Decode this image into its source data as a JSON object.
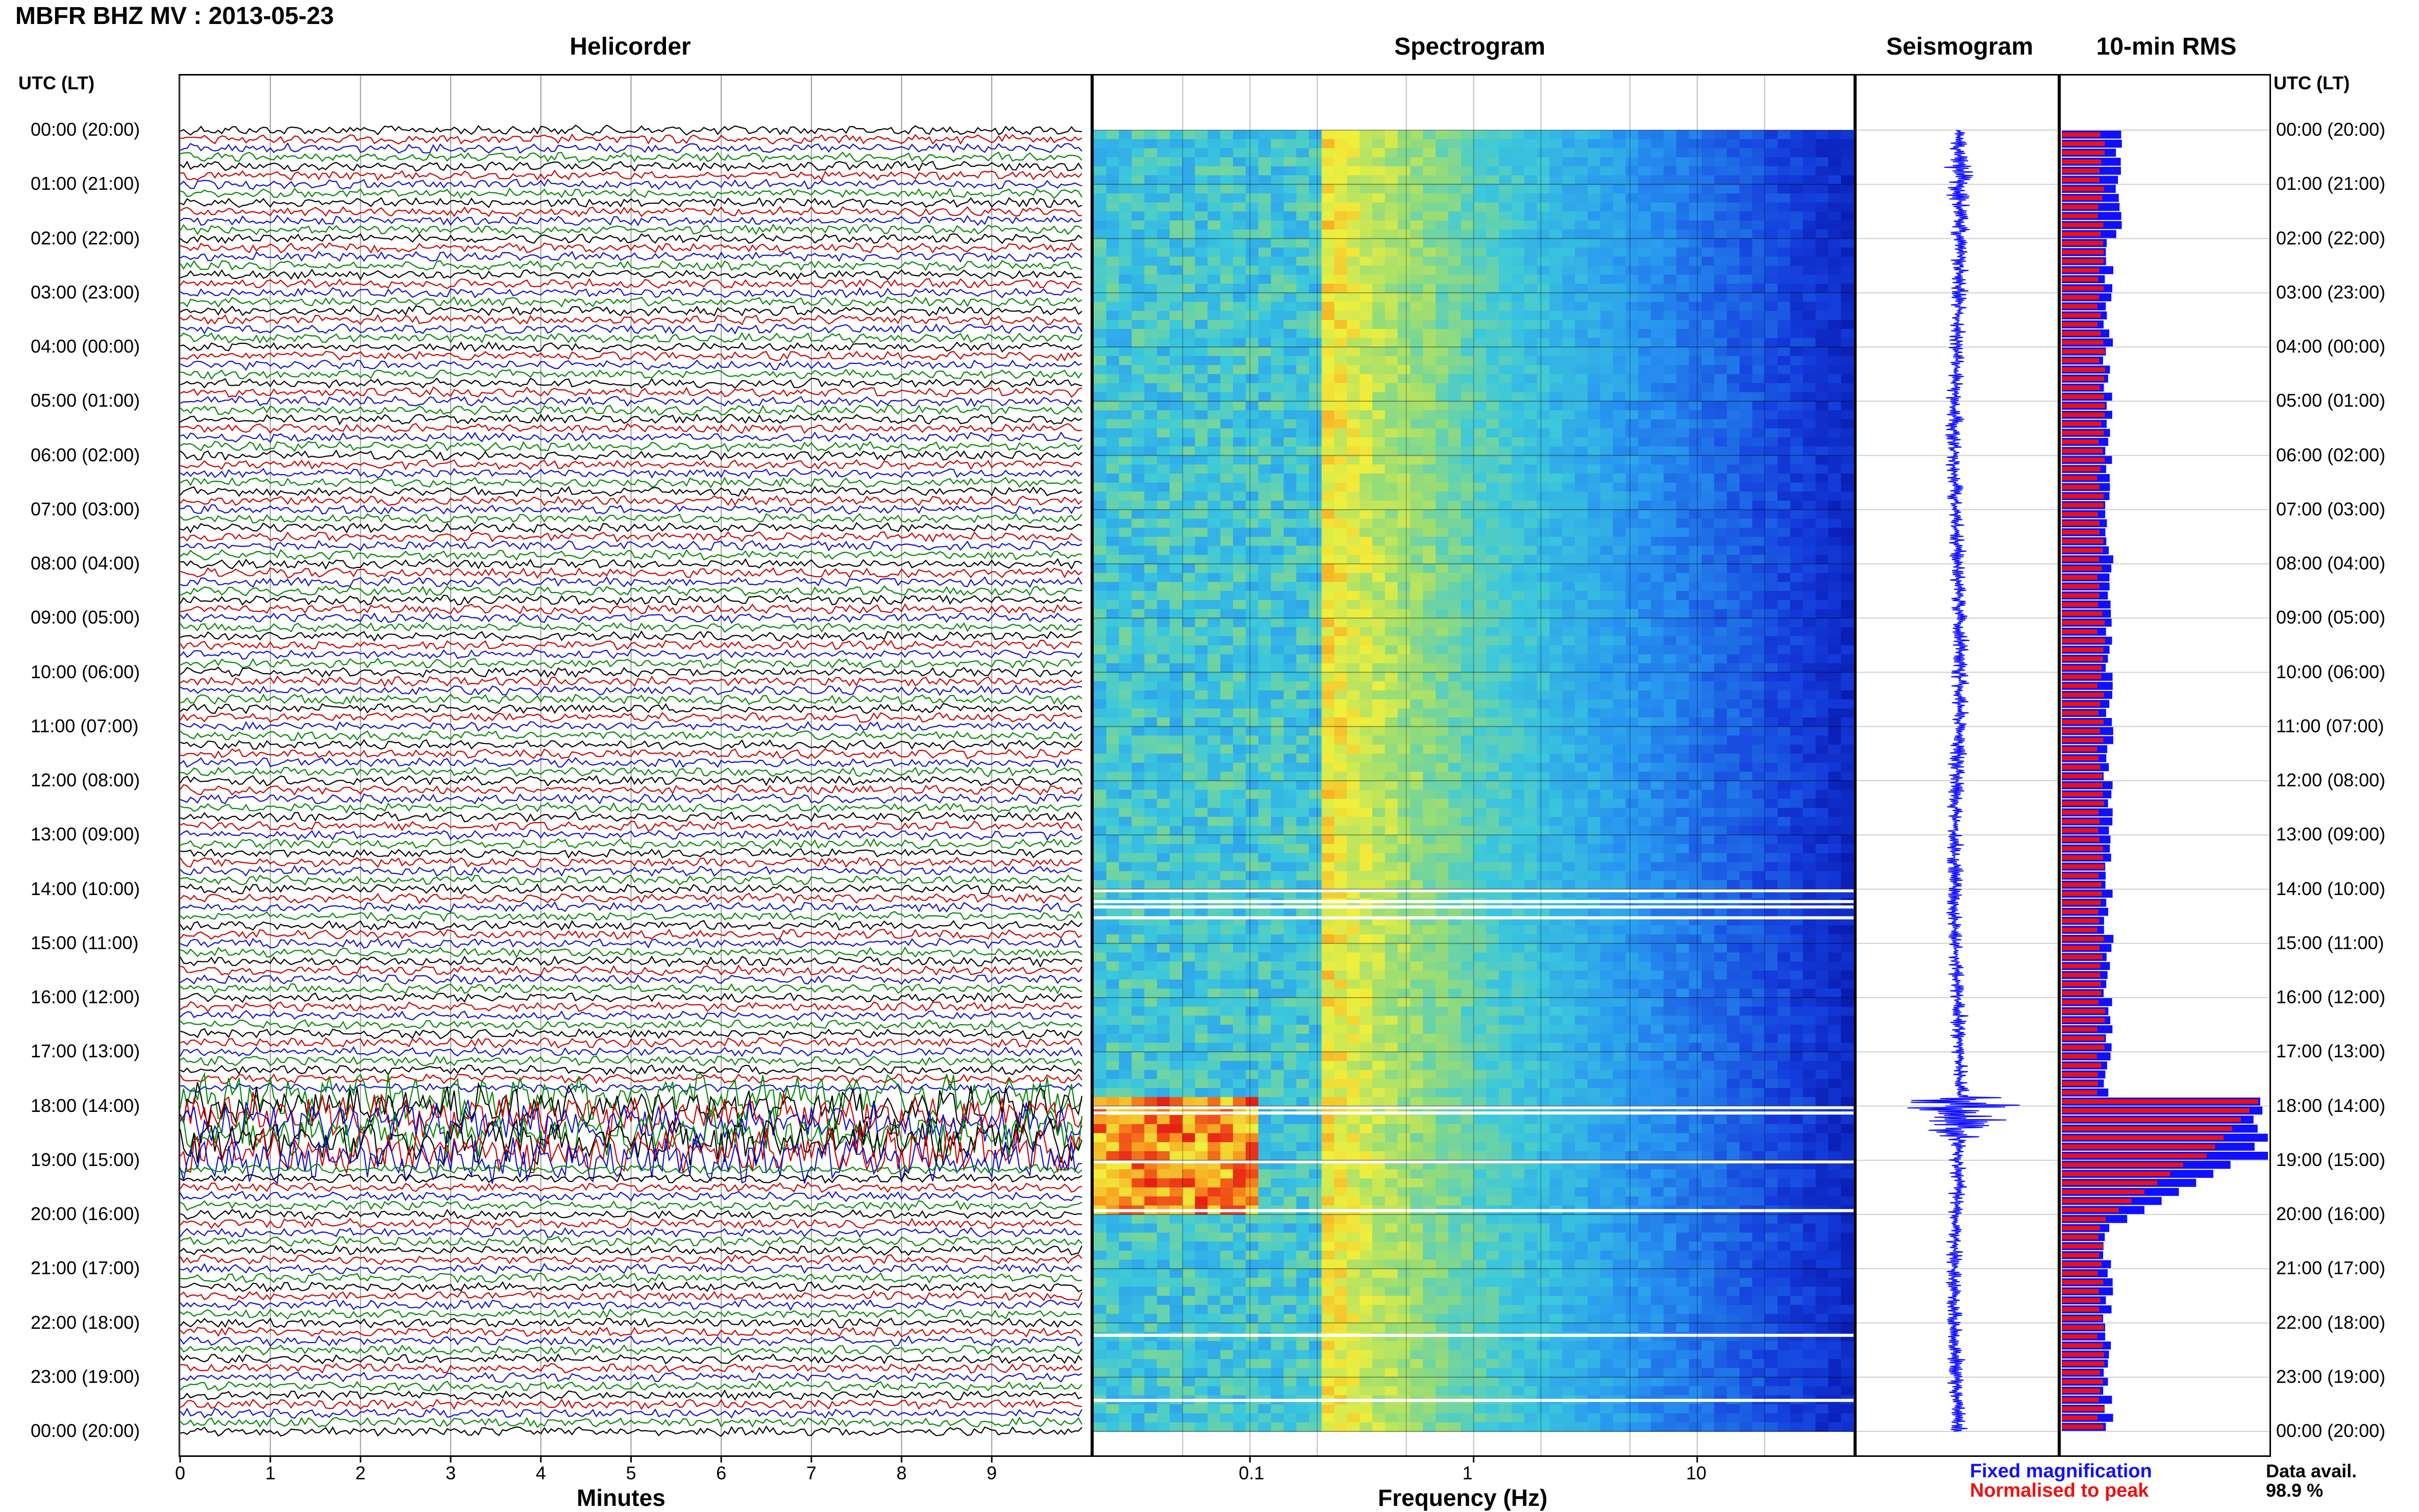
{
  "header": {
    "title": "MBFR BHZ MV : 2013-05-23"
  },
  "panels": {
    "helicorder": "Helicorder",
    "spectrogram": "Spectrogram",
    "seismogram": "Seismogram",
    "rms": "10-min RMS"
  },
  "time_axis": {
    "label": "UTC (LT)",
    "ticks": [
      "00:00 (20:00)",
      "01:00 (21:00)",
      "02:00 (22:00)",
      "03:00 (23:00)",
      "04:00 (00:00)",
      "05:00 (01:00)",
      "06:00 (02:00)",
      "07:00 (03:00)",
      "08:00 (04:00)",
      "09:00 (05:00)",
      "10:00 (06:00)",
      "11:00 (07:00)",
      "12:00 (08:00)",
      "13:00 (09:00)",
      "14:00 (10:00)",
      "15:00 (11:00)",
      "16:00 (12:00)",
      "17:00 (13:00)",
      "18:00 (14:00)",
      "19:00 (15:00)",
      "20:00 (16:00)",
      "21:00 (17:00)",
      "22:00 (18:00)",
      "23:00 (19:00)",
      "00:00 (20:00)"
    ]
  },
  "legend": {
    "fixed": "Fixed magnification",
    "normalised": "Normalised to peak",
    "fixed_color": "#1010ff",
    "normalised_color": "#ee1111"
  },
  "availability": {
    "label": "Data avail.",
    "value": "98.9 %"
  },
  "chart_data": [
    {
      "type": "line",
      "panel": "helicorder",
      "xlabel": "Minutes",
      "x_ticks": [
        "0",
        "1",
        "2",
        "3",
        "4",
        "5",
        "6",
        "7",
        "8",
        "9"
      ],
      "xlim": [
        0,
        10
      ],
      "trace_colors": [
        "#000000",
        "#cc0000",
        "#1010cc",
        "#008800"
      ],
      "ylim_hours": [
        0,
        24
      ],
      "line_interval_minutes": 10,
      "high_amplitude_period_utc": [
        "17:50",
        "19:00"
      ]
    },
    {
      "type": "heatmap",
      "panel": "spectrogram",
      "xlabel": "Frequency (Hz)",
      "x_scale": "log",
      "x_ticks": [
        "0.1",
        "1",
        "10"
      ],
      "xlim": [
        0.02,
        50
      ],
      "ylim_hours": [
        0,
        24
      ],
      "energetic_band_hz": [
        0.2,
        1.0
      ],
      "event_period_utc": [
        "17:50",
        "19:50"
      ],
      "event_band_hz": [
        0.02,
        0.1
      ]
    },
    {
      "type": "line",
      "panel": "seismogram",
      "color": "#1010ff",
      "ylim_hours": [
        0,
        24
      ],
      "event_period_utc": [
        "17:50",
        "18:40"
      ]
    },
    {
      "type": "bar",
      "panel": "rms",
      "orientation": "horizontal",
      "interval_minutes": 10,
      "ylim_hours": [
        0,
        24
      ],
      "series": [
        {
          "name": "Fixed magnification",
          "color": "#1010ff"
        },
        {
          "name": "Normalised to peak",
          "color": "#ee1111"
        }
      ],
      "peak_period_utc": [
        "17:50",
        "18:50"
      ]
    }
  ]
}
